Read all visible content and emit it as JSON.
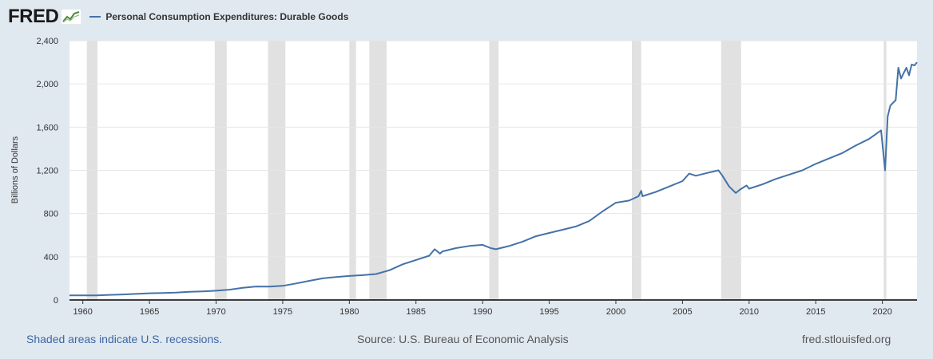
{
  "header": {
    "logo_text": "FRED",
    "series_title": "Personal Consumption Expenditures: Durable Goods"
  },
  "footer": {
    "recessions_note": "Shaded areas indicate U.S. recessions.",
    "source": "Source: U.S. Bureau of Economic Analysis",
    "site": "fred.stlouisfed.org"
  },
  "colors": {
    "line": "#4572a7",
    "recession_shade": "#e1e1e1",
    "background": "#e1e9f0",
    "plot_background": "#ffffff",
    "link": "#3b67a5"
  },
  "chart_data": {
    "type": "line",
    "xlabel": "",
    "ylabel": "Billions of Dollars",
    "xlim": [
      1959.0,
      2022.6
    ],
    "ylim": [
      0,
      2400
    ],
    "x_ticks": [
      1960,
      1965,
      1970,
      1975,
      1980,
      1985,
      1990,
      1995,
      2000,
      2005,
      2010,
      2015,
      2020
    ],
    "y_ticks": [
      0,
      400,
      800,
      1200,
      1600,
      2000,
      2400
    ],
    "y_tick_labels": [
      "0",
      "400",
      "800",
      "1,200",
      "1,600",
      "2,000",
      "2,400"
    ],
    "grid": "horizontal",
    "legend": "top-left",
    "recessions": [
      [
        1960.3,
        1961.1
      ],
      [
        1969.9,
        1970.8
      ],
      [
        1973.9,
        1975.2
      ],
      [
        1980.0,
        1980.5
      ],
      [
        1981.5,
        1982.8
      ],
      [
        1990.5,
        1991.2
      ],
      [
        2001.2,
        2001.9
      ],
      [
        2007.9,
        2009.4
      ],
      [
        2020.1,
        2020.3
      ]
    ],
    "series": [
      {
        "name": "Personal Consumption Expenditures: Durable Goods",
        "x": [
          1959,
          1960,
          1961,
          1962,
          1963,
          1964,
          1965,
          1966,
          1967,
          1968,
          1969,
          1970,
          1971,
          1972,
          1973,
          1974,
          1975,
          1976,
          1977,
          1978,
          1979,
          1980,
          1981,
          1982,
          1983,
          1984,
          1985,
          1986,
          1986.4,
          1986.8,
          1987,
          1988,
          1989,
          1990,
          1990.6,
          1991,
          1992,
          1993,
          1994,
          1995,
          1996,
          1997,
          1998,
          1999,
          2000,
          2001,
          2001.7,
          2001.9,
          2002,
          2003,
          2004,
          2005,
          2005.5,
          2006,
          2007,
          2007.7,
          2008,
          2008.5,
          2009,
          2009.3,
          2009.8,
          2010,
          2011,
          2012,
          2013,
          2014,
          2015,
          2016,
          2017,
          2018,
          2019,
          2019.9,
          2020.2,
          2020.4,
          2020.6,
          2021.0,
          2021.2,
          2021.4,
          2021.6,
          2021.8,
          2022.0,
          2022.2,
          2022.4,
          2022.6
        ],
        "values": [
          42,
          43,
          42,
          47,
          51,
          56,
          62,
          65,
          68,
          75,
          80,
          86,
          95,
          112,
          125,
          124,
          131,
          153,
          177,
          200,
          213,
          222,
          230,
          240,
          275,
          330,
          370,
          410,
          470,
          430,
          450,
          480,
          500,
          510,
          480,
          470,
          500,
          540,
          590,
          620,
          650,
          680,
          730,
          820,
          900,
          920,
          960,
          1010,
          960,
          1000,
          1050,
          1100,
          1170,
          1150,
          1180,
          1200,
          1150,
          1050,
          990,
          1020,
          1060,
          1030,
          1070,
          1120,
          1160,
          1200,
          1260,
          1310,
          1360,
          1430,
          1490,
          1570,
          1200,
          1700,
          1800,
          1850,
          2150,
          2050,
          2100,
          2150,
          2080,
          2180,
          2170,
          2200
        ]
      }
    ]
  }
}
